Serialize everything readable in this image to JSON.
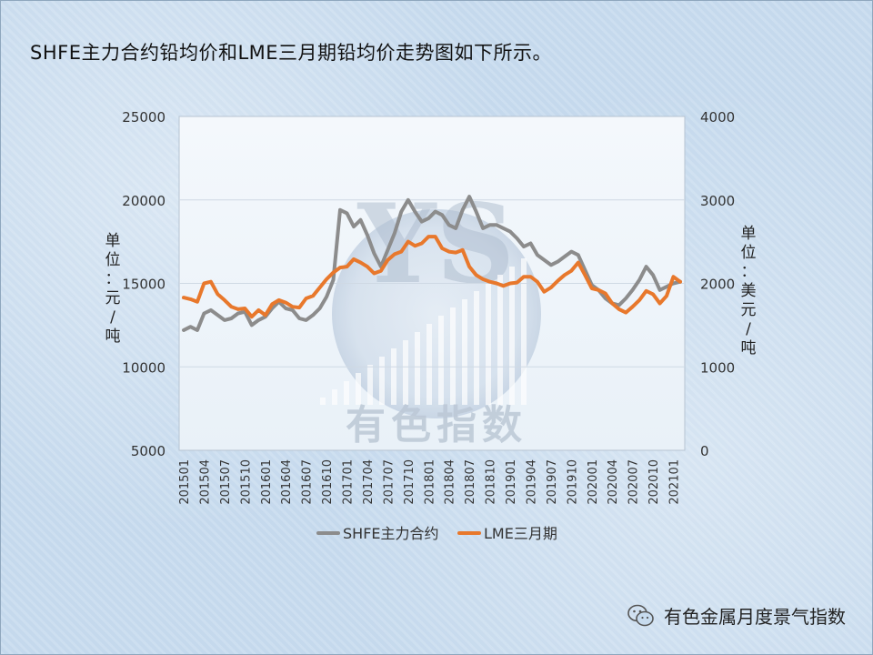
{
  "title": "SHFE主力合约铅均价和LME三月期铅均价走势图如下所示。",
  "footer_text": "有色金属月度景气指数",
  "watermark_text": "有色指数",
  "watermark_letters": "YS",
  "chart_data": {
    "type": "line",
    "left_axis": {
      "label": "单位：元/吨",
      "min": 5000,
      "max": 25000,
      "ticks": [
        5000,
        10000,
        15000,
        20000,
        25000
      ]
    },
    "right_axis": {
      "label": "单位：美元/吨",
      "min": 0,
      "max": 4000,
      "ticks": [
        0,
        1000,
        2000,
        3000,
        4000
      ]
    },
    "x_tick_labels": [
      "201501",
      "201504",
      "201507",
      "201510",
      "201601",
      "201604",
      "201607",
      "201610",
      "201701",
      "201704",
      "201707",
      "201710",
      "201801",
      "201804",
      "201807",
      "201810",
      "201901",
      "201904",
      "201907",
      "201910",
      "202001",
      "202004",
      "202007",
      "202010",
      "202101"
    ],
    "x": [
      "201501",
      "201502",
      "201503",
      "201504",
      "201505",
      "201506",
      "201507",
      "201508",
      "201509",
      "201510",
      "201511",
      "201512",
      "201601",
      "201602",
      "201603",
      "201604",
      "201605",
      "201606",
      "201607",
      "201608",
      "201609",
      "201610",
      "201611",
      "201612",
      "201701",
      "201702",
      "201703",
      "201704",
      "201705",
      "201706",
      "201707",
      "201708",
      "201709",
      "201710",
      "201711",
      "201712",
      "201801",
      "201802",
      "201803",
      "201804",
      "201805",
      "201806",
      "201807",
      "201808",
      "201809",
      "201810",
      "201811",
      "201812",
      "201901",
      "201902",
      "201903",
      "201904",
      "201905",
      "201906",
      "201907",
      "201908",
      "201909",
      "201910",
      "201911",
      "201912",
      "202001",
      "202002",
      "202003",
      "202004",
      "202005",
      "202006",
      "202007",
      "202008",
      "202009",
      "202010",
      "202011",
      "202012",
      "202101",
      "202102"
    ],
    "series": [
      {
        "name": "SHFE主力合约",
        "axis": "left",
        "color": "#8c8c8c",
        "values": [
          12200,
          12400,
          12200,
          13200,
          13400,
          13100,
          12800,
          12900,
          13200,
          13300,
          12500,
          12800,
          13000,
          13500,
          13900,
          13500,
          13400,
          12900,
          12800,
          13100,
          13500,
          14200,
          15200,
          19400,
          19200,
          18400,
          18800,
          17900,
          16800,
          16000,
          17000,
          18000,
          19300,
          20000,
          19300,
          18700,
          18900,
          19300,
          19100,
          18500,
          18300,
          19400,
          20200,
          19300,
          18300,
          18500,
          18500,
          18300,
          18100,
          17700,
          17200,
          17400,
          16700,
          16400,
          16100,
          16300,
          16600,
          16900,
          16700,
          15800,
          14900,
          14600,
          14100,
          13800,
          13700,
          14100,
          14600,
          15200,
          16000,
          15500,
          14600,
          14800,
          15000,
          15100
        ]
      },
      {
        "name": "LME三月期",
        "axis": "right",
        "color": "#e8782c",
        "values": [
          1830,
          1810,
          1780,
          2000,
          2020,
          1870,
          1800,
          1720,
          1690,
          1700,
          1600,
          1680,
          1620,
          1750,
          1800,
          1770,
          1720,
          1710,
          1820,
          1850,
          1950,
          2050,
          2130,
          2190,
          2200,
          2290,
          2250,
          2200,
          2120,
          2150,
          2280,
          2350,
          2380,
          2500,
          2450,
          2480,
          2560,
          2560,
          2420,
          2380,
          2370,
          2400,
          2200,
          2100,
          2050,
          2020,
          2000,
          1970,
          2000,
          2010,
          2080,
          2080,
          2020,
          1900,
          1950,
          2030,
          2100,
          2150,
          2250,
          2100,
          1940,
          1920,
          1880,
          1760,
          1690,
          1650,
          1720,
          1800,
          1910,
          1870,
          1760,
          1850,
          2080,
          2020
        ]
      }
    ],
    "legend": "bottom",
    "grid": true
  }
}
